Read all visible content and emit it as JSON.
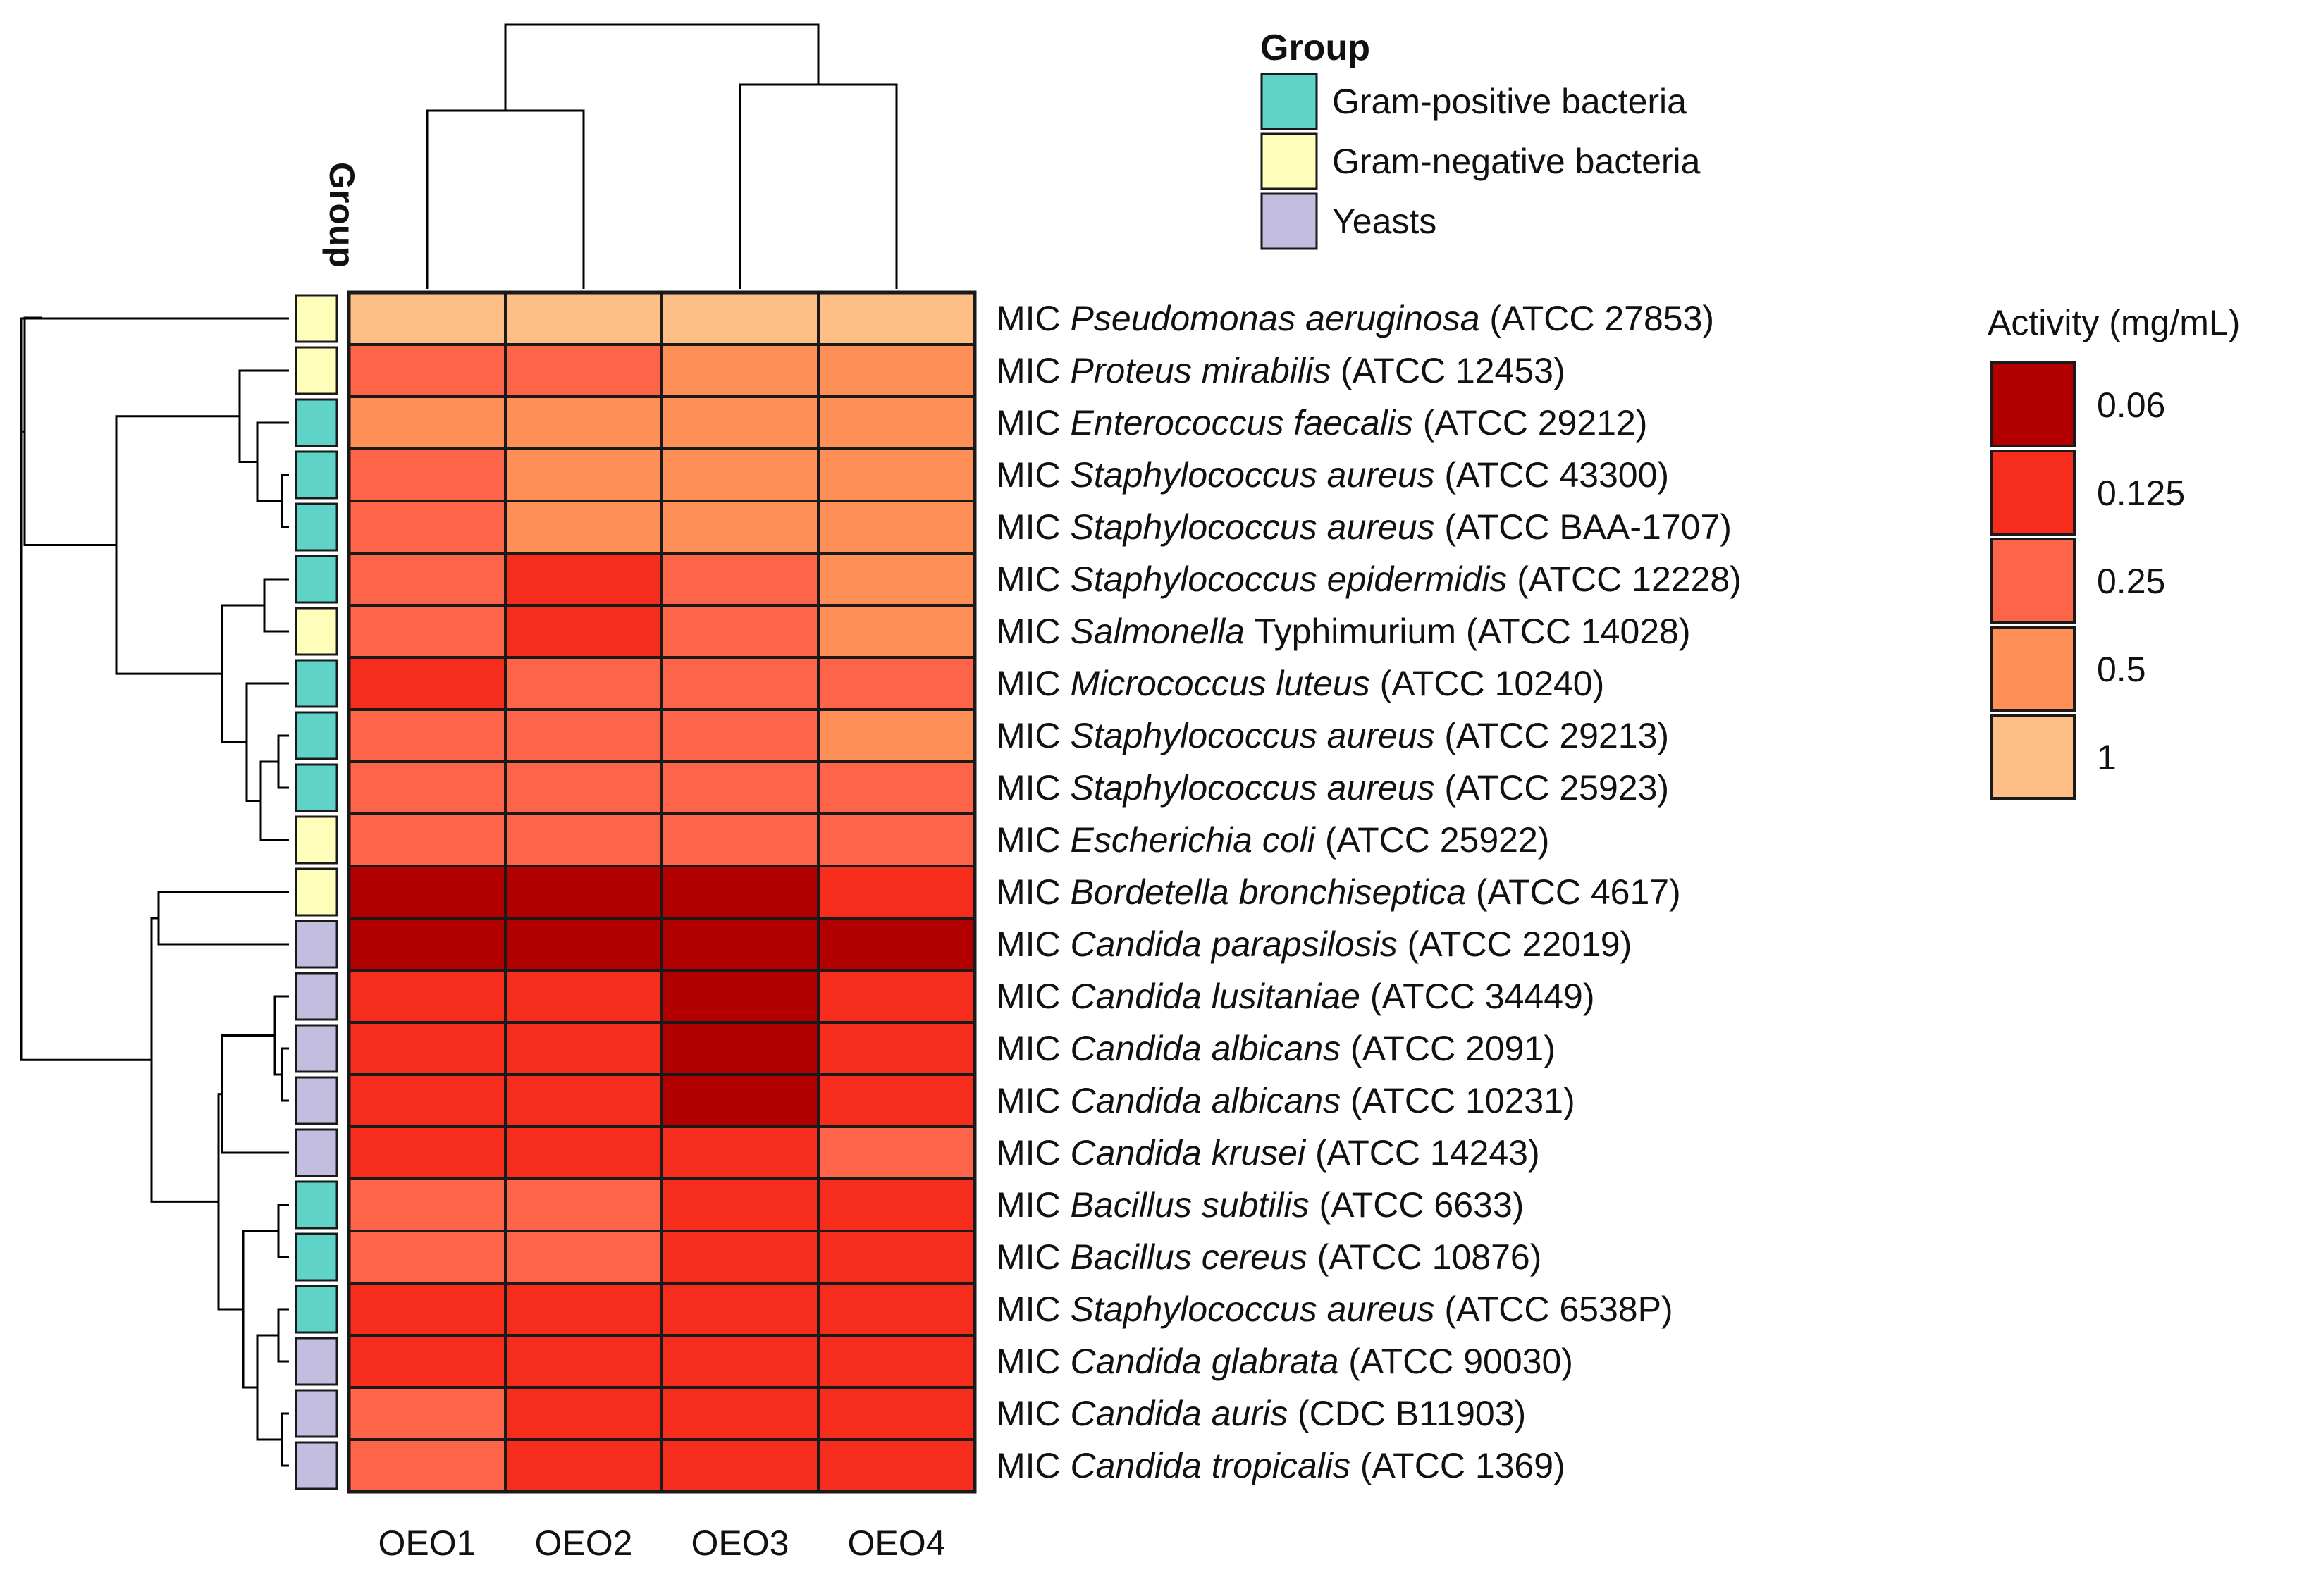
{
  "chart_data": {
    "type": "heatmap",
    "title": "",
    "columns": [
      "OEO1",
      "OEO2",
      "OEO3",
      "OEO4"
    ],
    "rows": [
      {
        "prefix": "MIC",
        "species": "Pseudomonas aeruginosa",
        "species_style": "italic",
        "suffix": "(ATCC 27853)",
        "group": "Gram-negative bacteria",
        "values": [
          1,
          1,
          1,
          1
        ]
      },
      {
        "prefix": "MIC",
        "species": "Proteus mirabilis",
        "species_style": "italic",
        "suffix": "(ATCC 12453)",
        "group": "Gram-negative bacteria",
        "values": [
          0.25,
          0.25,
          0.5,
          0.5
        ]
      },
      {
        "prefix": "MIC",
        "species": "Enterococcus faecalis",
        "species_style": "italic",
        "suffix": "(ATCC 29212)",
        "group": "Gram-positive bacteria",
        "values": [
          0.5,
          0.5,
          0.5,
          0.5
        ]
      },
      {
        "prefix": "MIC",
        "species": "Staphylococcus aureus",
        "species_style": "italic",
        "suffix": "(ATCC 43300)",
        "group": "Gram-positive bacteria",
        "values": [
          0.25,
          0.5,
          0.5,
          0.5
        ]
      },
      {
        "prefix": "MIC",
        "species": "Staphylococcus aureus",
        "species_style": "italic",
        "suffix": "(ATCC BAA-1707)",
        "group": "Gram-positive bacteria",
        "values": [
          0.25,
          0.5,
          0.5,
          0.5
        ]
      },
      {
        "prefix": "MIC",
        "species": "Staphylococcus epidermidis",
        "species_style": "italic",
        "suffix": "(ATCC 12228)",
        "group": "Gram-positive bacteria",
        "values": [
          0.25,
          0.125,
          0.25,
          0.5
        ]
      },
      {
        "prefix": "MIC",
        "species": "Salmonella",
        "species_style": "italic",
        "suffix": "Typhimurium (ATCC 14028)",
        "group": "Gram-negative bacteria",
        "values": [
          0.25,
          0.125,
          0.25,
          0.5
        ]
      },
      {
        "prefix": "MIC",
        "species": "Micrococcus luteus",
        "species_style": "italic",
        "suffix": "(ATCC 10240)",
        "group": "Gram-positive bacteria",
        "values": [
          0.125,
          0.25,
          0.25,
          0.25
        ]
      },
      {
        "prefix": "MIC",
        "species": "Staphylococcus aureus",
        "species_style": "italic",
        "suffix": "(ATCC 29213)",
        "group": "Gram-positive bacteria",
        "values": [
          0.25,
          0.25,
          0.25,
          0.5
        ]
      },
      {
        "prefix": "MIC",
        "species": "Staphylococcus aureus",
        "species_style": "italic",
        "suffix": "(ATCC 25923)",
        "group": "Gram-positive bacteria",
        "values": [
          0.25,
          0.25,
          0.25,
          0.25
        ]
      },
      {
        "prefix": "MIC",
        "species": "Escherichia coli",
        "species_style": "italic",
        "suffix": "(ATCC 25922)",
        "group": "Gram-negative bacteria",
        "values": [
          0.25,
          0.25,
          0.25,
          0.25
        ]
      },
      {
        "prefix": "MIC",
        "species": "Bordetella bronchiseptica",
        "species_style": "italic",
        "suffix": "(ATCC 4617)",
        "group": "Gram-negative bacteria",
        "values": [
          0.06,
          0.06,
          0.06,
          0.125
        ]
      },
      {
        "prefix": "MIC",
        "species": "Candida parapsilosis",
        "species_style": "italic",
        "suffix": "(ATCC 22019)",
        "group": "Yeasts",
        "values": [
          0.06,
          0.06,
          0.06,
          0.06
        ]
      },
      {
        "prefix": "MIC",
        "species": "Candida lusitaniae",
        "species_style": "italic",
        "suffix": "(ATCC 34449)",
        "group": "Yeasts",
        "values": [
          0.125,
          0.125,
          0.06,
          0.125
        ]
      },
      {
        "prefix": "MIC",
        "species": "Candida albicans",
        "species_style": "italic",
        "suffix": "(ATCC 2091)",
        "group": "Yeasts",
        "values": [
          0.125,
          0.125,
          0.06,
          0.125
        ]
      },
      {
        "prefix": "MIC",
        "species": "Candida albicans",
        "species_style": "italic",
        "suffix": "(ATCC 10231)",
        "group": "Yeasts",
        "values": [
          0.125,
          0.125,
          0.06,
          0.125
        ]
      },
      {
        "prefix": "MIC",
        "species": "Candida krusei",
        "species_style": "italic",
        "suffix": "(ATCC 14243)",
        "group": "Yeasts",
        "values": [
          0.125,
          0.125,
          0.125,
          0.25
        ]
      },
      {
        "prefix": "MIC",
        "species": "Bacillus subtilis",
        "species_style": "italic",
        "suffix": "(ATCC 6633)",
        "group": "Gram-positive bacteria",
        "values": [
          0.25,
          0.25,
          0.125,
          0.125
        ]
      },
      {
        "prefix": "MIC",
        "species": "Bacillus cereus",
        "species_style": "italic",
        "suffix": "(ATCC 10876)",
        "group": "Gram-positive bacteria",
        "values": [
          0.25,
          0.25,
          0.125,
          0.125
        ]
      },
      {
        "prefix": "MIC",
        "species": "Staphylococcus aureus",
        "species_style": "italic",
        "suffix": "(ATCC 6538P)",
        "group": "Gram-positive bacteria",
        "values": [
          0.125,
          0.125,
          0.125,
          0.125
        ]
      },
      {
        "prefix": "MIC",
        "species": "Candida glabrata",
        "species_style": "italic",
        "suffix": "(ATCC 90030)",
        "group": "Yeasts",
        "values": [
          0.125,
          0.125,
          0.125,
          0.125
        ]
      },
      {
        "prefix": "MIC",
        "species": "Candida auris",
        "species_style": "italic",
        "suffix": "(CDC B11903)",
        "group": "Yeasts",
        "values": [
          0.25,
          0.125,
          0.125,
          0.125
        ]
      },
      {
        "prefix": "MIC",
        "species": "Candida tropicalis",
        "species_style": "italic",
        "suffix": "(ATCC 1369)",
        "group": "Yeasts",
        "values": [
          0.25,
          0.125,
          0.125,
          0.125
        ]
      }
    ],
    "group_annotation_label": "Group",
    "group_legend": {
      "title": "Group",
      "entries": [
        {
          "label": "Gram-positive bacteria",
          "color": "#5fd3c7"
        },
        {
          "label": "Gram-negative bacteria",
          "color": "#ffffbb"
        },
        {
          "label": "Yeasts",
          "color": "#c3bde0"
        }
      ]
    },
    "color_legend": {
      "title": "Activity (mg/mL)",
      "levels": [
        {
          "value": 0.06,
          "label": "0.06",
          "color": "#b20000"
        },
        {
          "value": 0.125,
          "label": "0.125",
          "color": "#f62c1c"
        },
        {
          "value": 0.25,
          "label": "0.25",
          "color": "#fe6447"
        },
        {
          "value": 0.5,
          "label": "0.5",
          "color": "#fd8f57"
        },
        {
          "value": 1,
          "label": "1",
          "color": "#fdbf86"
        }
      ]
    },
    "column_dendrogram": "((OEO1,OEO2),(OEO3,OEO4))",
    "row_dendrogram": "present"
  }
}
